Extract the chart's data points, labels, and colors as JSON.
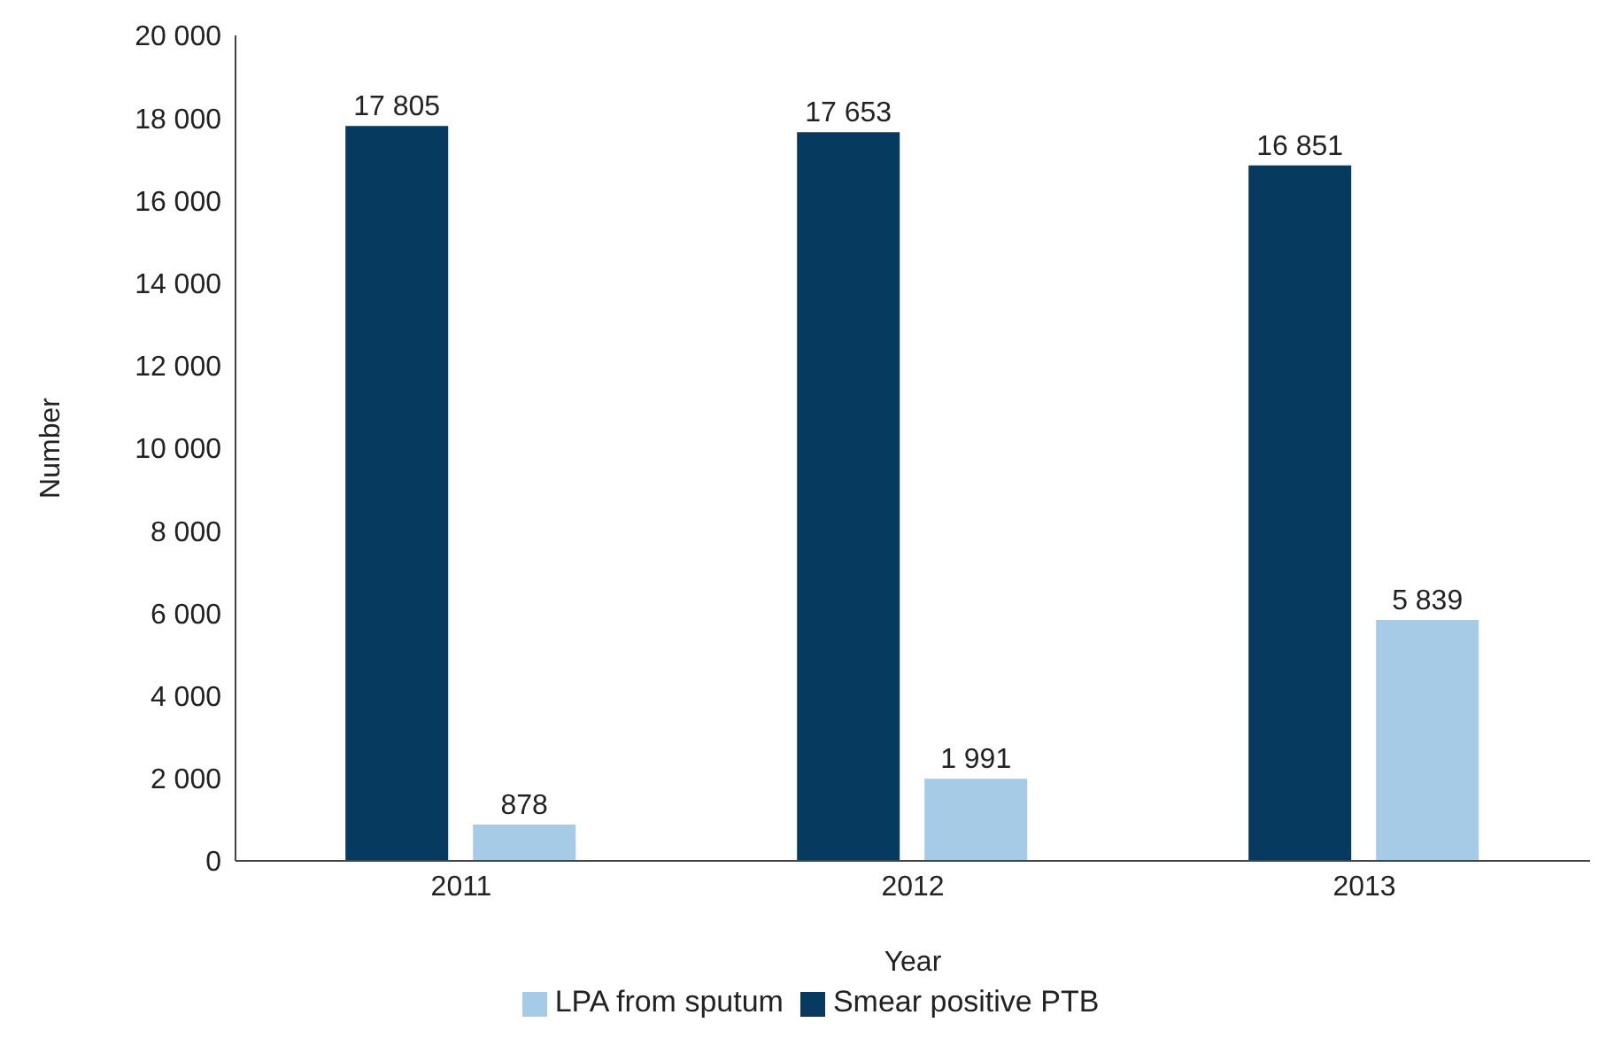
{
  "chart_data": {
    "type": "bar",
    "xlabel": "Year",
    "ylabel": "Number",
    "categories": [
      "2011",
      "2012",
      "2013"
    ],
    "series": [
      {
        "name": "Smear positive PTB",
        "color": "#063a5e",
        "values": [
          17805,
          17653,
          16851
        ],
        "value_labels": [
          "17 805",
          "17 653",
          "16 851"
        ]
      },
      {
        "name": "LPA from sputum",
        "color": "#a6cbe6",
        "values": [
          878,
          1991,
          5839
        ],
        "value_labels": [
          "878",
          "1 991",
          "5 839"
        ]
      }
    ],
    "ylim": [
      0,
      20000
    ],
    "yticks": [
      0,
      {
        "value": 2000,
        "label": "2 000"
      },
      {
        "value": 4000,
        "label": "4 000"
      },
      {
        "value": 6000,
        "label": "6 000"
      },
      {
        "value": 8000,
        "label": "8 000"
      },
      {
        "value": 10000,
        "label": "10 000"
      },
      {
        "value": 12000,
        "label": "12 000"
      },
      {
        "value": 14000,
        "label": "14 000"
      },
      {
        "value": 16000,
        "label": "16 000"
      },
      {
        "value": 18000,
        "label": "18 000"
      },
      {
        "value": 20000,
        "label": "20 000"
      }
    ],
    "legend": "bottom"
  }
}
